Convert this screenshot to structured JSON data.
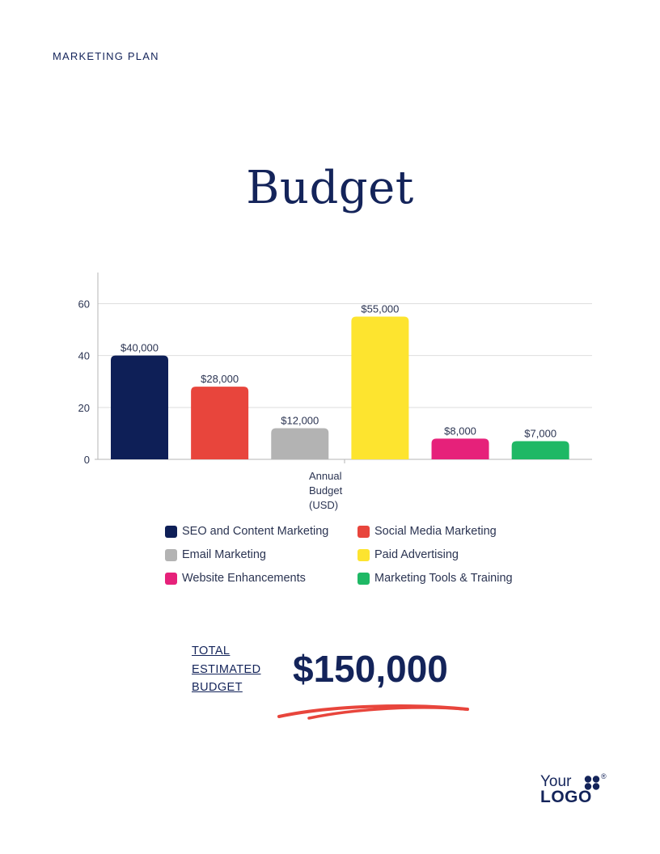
{
  "header": {
    "label": "MARKETING PLAN"
  },
  "page": {
    "title": "Budget"
  },
  "chart_data": {
    "type": "bar",
    "title": "",
    "xlabel": "",
    "ylabel": "",
    "category_label": "Annual Budget (USD)",
    "category_label_lines": [
      "Annual",
      "Budget",
      "(USD)"
    ],
    "ylim": [
      0,
      72
    ],
    "yticks": [
      0,
      20,
      40,
      60
    ],
    "grid": true,
    "legend_position": "bottom",
    "series": [
      {
        "name": "SEO and Content Marketing",
        "value": 40,
        "label": "$40,000",
        "color": "#0e1f57"
      },
      {
        "name": "Social Media Marketing",
        "value": 28,
        "label": "$28,000",
        "color": "#e8453c"
      },
      {
        "name": "Email Marketing",
        "value": 12,
        "label": "$12,000",
        "color": "#b3b3b3"
      },
      {
        "name": "Paid Advertising",
        "value": 55,
        "label": "$55,000",
        "color": "#fde42f"
      },
      {
        "name": "Website Enhancements",
        "value": 8,
        "label": "$8,000",
        "color": "#e6217a"
      },
      {
        "name": "Marketing Tools & Training",
        "value": 7,
        "label": "$7,000",
        "color": "#1fb865"
      }
    ]
  },
  "total": {
    "label_lines": [
      "TOTAL",
      "ESTIMATED",
      "BUDGET"
    ],
    "value": "$150,000",
    "underline_color": "#e8453c"
  },
  "logo": {
    "line1": "Your",
    "line2": "LOGO",
    "mark": "®"
  }
}
